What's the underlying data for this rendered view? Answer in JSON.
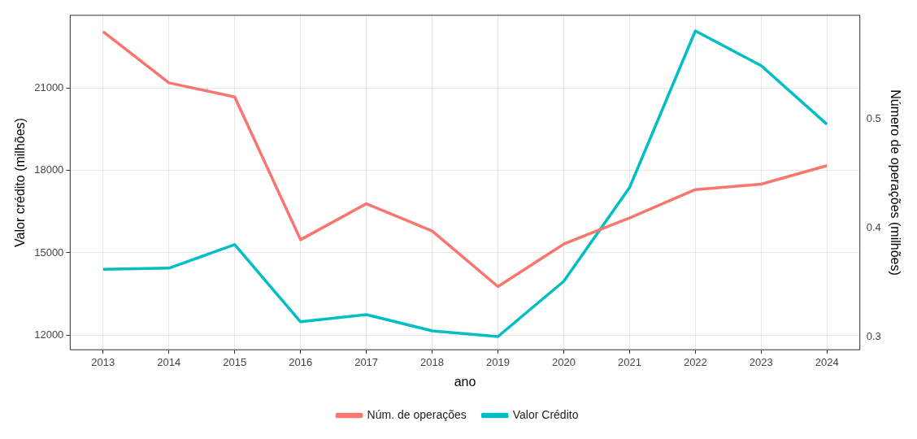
{
  "chart_data": {
    "type": "line",
    "xlabel": "ano",
    "ylabel": "Valor crédito (milhões)",
    "y2label": "Número de operações (milhões)",
    "categories": [
      "2013",
      "2014",
      "2015",
      "2016",
      "2017",
      "2018",
      "2019",
      "2020",
      "2021",
      "2022",
      "2023",
      "2024"
    ],
    "series": [
      {
        "name": "Núm. de operações",
        "color": "#f8766d",
        "axis": "y2",
        "values": [
          0.58,
          0.533,
          0.52,
          0.389,
          0.422,
          0.397,
          0.346,
          0.385,
          0.409,
          0.435,
          0.44,
          0.457
        ]
      },
      {
        "name": "Valor Crédito",
        "color": "#00bfc4",
        "axis": "y",
        "values": [
          14400,
          14440,
          15300,
          12480,
          12740,
          12150,
          11940,
          13960,
          17380,
          23100,
          21830,
          19690
        ]
      }
    ],
    "ylim": [
      11460,
      23670
    ],
    "yticks": [
      12000,
      15000,
      18000,
      21000
    ],
    "y2lim": [
      0.288,
      0.595
    ],
    "y2ticks": [
      0.3,
      0.4,
      0.5
    ],
    "grid": true,
    "legend": "bottom",
    "line_style": "solid",
    "marker": "none"
  }
}
